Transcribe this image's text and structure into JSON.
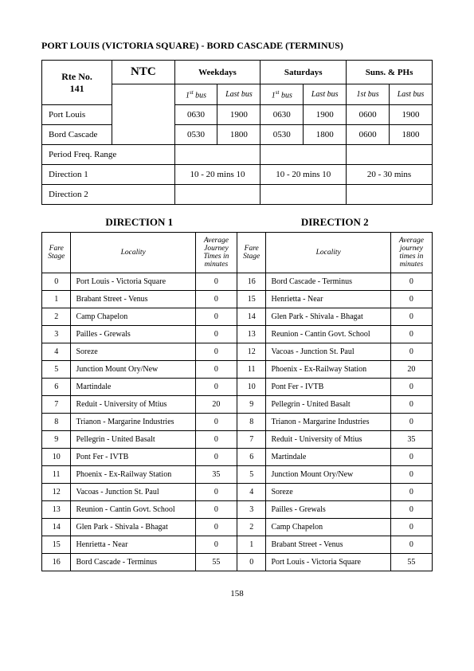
{
  "page_number": "158",
  "title": "PORT LOUIS (VICTORIA SQUARE) - BORD CASCADE (TERMINUS)",
  "schedule": {
    "ntc_label": "NTC",
    "rte_label_line1": "Rte No.",
    "rte_label_line2": "141",
    "day_cols": [
      "Weekdays",
      "Saturdays",
      "Suns. & PHs"
    ],
    "sub_cols_italic": [
      {
        "first": "1",
        "first_sup": "st",
        "first_tail": "bus",
        "last": "Last bus"
      },
      {
        "first": "1",
        "first_sup": "st",
        "first_tail": "bus",
        "last": "Last bus"
      },
      {
        "first": "1st bus",
        "last": "Last bus"
      }
    ],
    "origin_rows": [
      {
        "label": "Port Louis",
        "wd_first": "0630",
        "wd_last": "1900",
        "sat_first": "0630",
        "sat_last": "1900",
        "sun_first": "0600",
        "sun_last": "1900"
      },
      {
        "label": "Bord Cascade",
        "wd_first": "0530",
        "wd_last": "1800",
        "sat_first": "0530",
        "sat_last": "1800",
        "sun_first": "0600",
        "sun_last": "1800"
      }
    ],
    "period_label": "Period Freq. Range",
    "dir1_label": "Direction 1",
    "dir1_wd": "10 - 20 mins   10",
    "dir1_sat": "10 - 20 mins    10",
    "dir1_sun": "20 - 30 mins",
    "dir2_label": "Direction 2"
  },
  "directions_headers": {
    "d1": "DIRECTION 1",
    "d2": "DIRECTION 2"
  },
  "stage_table": {
    "headers": {
      "fare_stage": "Fare Stage",
      "locality": "Locality",
      "avg1": "Average Journey Times in minutes",
      "avg2": "Average journey times in minutes"
    },
    "rows": [
      {
        "s1": "0",
        "l1": "Port Louis - Victoria Square",
        "t1": "0",
        "s2": "16",
        "l2": "Bord Cascade - Terminus",
        "t2": "0"
      },
      {
        "s1": "1",
        "l1": "Brabant Street - Venus",
        "t1": "0",
        "s2": "15",
        "l2": "Henrietta - Near",
        "t2": "0"
      },
      {
        "s1": "2",
        "l1": "Camp Chapelon",
        "t1": "0",
        "s2": "14",
        "l2": "Glen Park - Shivala - Bhagat",
        "t2": "0"
      },
      {
        "s1": "3",
        "l1": "Pailles - Grewals",
        "t1": "0",
        "s2": "13",
        "l2": "Reunion - Cantin Govt. School",
        "t2": "0"
      },
      {
        "s1": "4",
        "l1": "Soreze",
        "t1": "0",
        "s2": "12",
        "l2": "Vacoas - Junction St. Paul",
        "t2": "0"
      },
      {
        "s1": "5",
        "l1": "Junction Mount Ory/New",
        "t1": "0",
        "s2": "11",
        "l2": "Phoenix - Ex-Railway Station",
        "t2": "20"
      },
      {
        "s1": "6",
        "l1": "Martindale",
        "t1": "0",
        "s2": "10",
        "l2": "Pont Fer - IVTB",
        "t2": "0"
      },
      {
        "s1": "7",
        "l1": "Reduit - University of Mtius",
        "t1": "20",
        "s2": "9",
        "l2": "Pellegrin - United Basalt",
        "t2": "0"
      },
      {
        "s1": "8",
        "l1": "Trianon - Margarine Industries",
        "t1": "0",
        "s2": "8",
        "l2": "Trianon - Margarine Industries",
        "t2": "0"
      },
      {
        "s1": "9",
        "l1": "Pellegrin - United Basalt",
        "t1": "0",
        "s2": "7",
        "l2": "Reduit - University of Mtius",
        "t2": "35"
      },
      {
        "s1": "10",
        "l1": "Pont Fer - IVTB",
        "t1": "0",
        "s2": "6",
        "l2": "Martindale",
        "t2": "0"
      },
      {
        "s1": "11",
        "l1": "Phoenix - Ex-Railway Station",
        "t1": "35",
        "s2": "5",
        "l2": "Junction Mount Ory/New",
        "t2": "0"
      },
      {
        "s1": "12",
        "l1": "Vacoas - Junction St. Paul",
        "t1": "0",
        "s2": "4",
        "l2": "Soreze",
        "t2": "0"
      },
      {
        "s1": "13",
        "l1": "Reunion - Cantin Govt. School",
        "t1": "0",
        "s2": "3",
        "l2": "Pailles - Grewals",
        "t2": "0"
      },
      {
        "s1": "14",
        "l1": "Glen Park - Shivala - Bhagat",
        "t1": "0",
        "s2": "2",
        "l2": "Camp Chapelon",
        "t2": "0"
      },
      {
        "s1": "15",
        "l1": "Henrietta - Near",
        "t1": "0",
        "s2": "1",
        "l2": "Brabant Street - Venus",
        "t2": "0"
      },
      {
        "s1": "16",
        "l1": "Bord Cascade - Terminus",
        "t1": "55",
        "s2": "0",
        "l2": "Port Louis - Victoria Square",
        "t2": "55"
      }
    ]
  }
}
